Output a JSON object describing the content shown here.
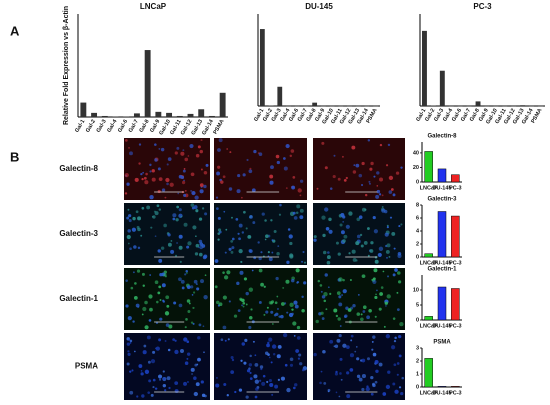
{
  "panel_labels": [
    "A",
    "B"
  ],
  "image_rows": [
    "Galectin-8",
    "Galectin-3",
    "Galectin-1",
    "PSMA"
  ],
  "chart_data": [
    {
      "type": "bar",
      "title": "LNCaP",
      "y_label": "Relative Fold Expression vs β-Actin",
      "color": "#333333",
      "categories": [
        "Gal-1",
        "Gal-2",
        "Gal-3",
        "Gal-4",
        "Gal-6",
        "Gal-7",
        "Gal-8",
        "Gal-9",
        "Gal-10",
        "Gal-11",
        "Gal-12",
        "Gal-13",
        "Gal-14",
        "PSMA"
      ],
      "values": [
        28,
        8,
        2,
        1,
        1,
        7,
        130,
        10,
        8,
        2,
        6,
        15,
        2,
        47
      ],
      "ylim": [
        0,
        200
      ]
    },
    {
      "type": "bar",
      "title": "DU-145",
      "color": "#333333",
      "categories": [
        "Gal-1",
        "Gal-2",
        "Gal-3",
        "Gal-4",
        "Gal-6",
        "Gal-7",
        "Gal-8",
        "Gal-9",
        "Gal-10",
        "Gal-11",
        "Gal-12",
        "Gal-13",
        "Gal-14",
        "PSMA"
      ],
      "values": [
        460,
        3,
        115,
        1,
        1,
        1,
        20,
        1,
        1,
        1,
        1,
        1,
        1,
        1
      ],
      "ylim": [
        0,
        550
      ]
    },
    {
      "type": "bar",
      "title": "PC-3",
      "color": "#333333",
      "categories": [
        "Gal-1",
        "Gal-2",
        "Gal-3",
        "Gal-4",
        "Gal-6",
        "Gal-7",
        "Gal-8",
        "Gal-9",
        "Gal-10",
        "Gal-11",
        "Gal-12",
        "Gal-13",
        "Gal-14",
        "PSMA"
      ],
      "values": [
        490,
        3,
        230,
        1,
        1,
        1,
        30,
        1,
        1,
        1,
        1,
        5,
        1,
        1
      ],
      "ylim": [
        0,
        600
      ]
    },
    {
      "type": "bar",
      "title": "Galectin-8",
      "y_label": "Mean pixel units",
      "colors": [
        "#22cc22",
        "#2233ee",
        "#ee2222"
      ],
      "categories": [
        "LNCaP",
        "DU-145",
        "PC-3"
      ],
      "values": [
        42,
        18,
        10
      ],
      "ylim": [
        0,
        55
      ],
      "yticks": [
        0,
        20,
        40
      ]
    },
    {
      "type": "bar",
      "title": "Galectin-3",
      "y_label": "Mean pixel units",
      "colors": [
        "#22cc22",
        "#2233ee",
        "#ee2222"
      ],
      "categories": [
        "LNCaP",
        "DU-145",
        "PC-3"
      ],
      "values": [
        0.5,
        7,
        6.3
      ],
      "ylim": [
        0,
        8
      ],
      "yticks": [
        0,
        2,
        4,
        6,
        8
      ]
    },
    {
      "type": "bar",
      "title": "Galectin-1",
      "y_label": "Mean pixel units",
      "colors": [
        "#22cc22",
        "#2233ee",
        "#ee2222"
      ],
      "categories": [
        "LNCaP",
        "DU-145",
        "PC-3"
      ],
      "values": [
        1.2,
        11,
        10.5
      ],
      "ylim": [
        0,
        15
      ],
      "yticks": [
        0,
        5,
        10
      ]
    },
    {
      "type": "bar",
      "title": "PSMA",
      "y_label": "Mean pixel units",
      "colors": [
        "#22cc22",
        "#2233ee",
        "#ee2222"
      ],
      "categories": [
        "LNCaP",
        "DU-145",
        "PC-3"
      ],
      "values": [
        2.2,
        0.05,
        0.05
      ],
      "ylim": [
        0,
        3
      ],
      "yticks": [
        0,
        1,
        2,
        3
      ]
    }
  ]
}
